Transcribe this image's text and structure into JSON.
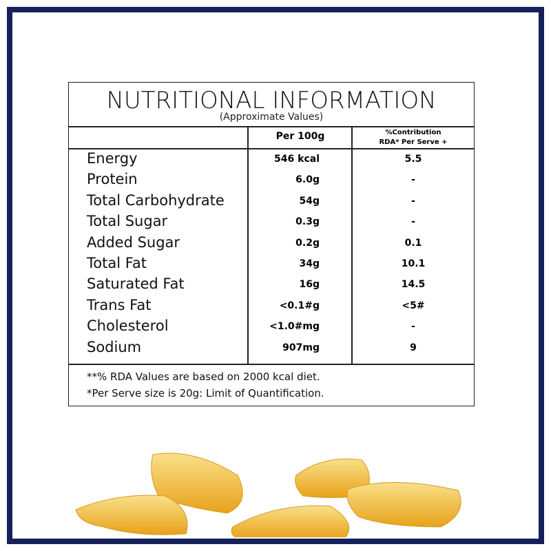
{
  "title": "NUTRITIONAL INFORMATION",
  "subtitle": "(Approximate Values)",
  "headers": {
    "per100": "Per 100g",
    "contrib_line1": "%Contribution",
    "contrib_line2": "RDA* Per Serve +"
  },
  "rows": [
    {
      "name": "Energy",
      "per100": "546 kcal",
      "rda": "5.5"
    },
    {
      "name": "Protein",
      "per100": "6.0g",
      "rda": "-"
    },
    {
      "name": "Total Carbohydrate",
      "per100": "54g",
      "rda": "-"
    },
    {
      "name": "Total Sugar",
      "per100": "0.3g",
      "rda": "-"
    },
    {
      "name": "Added Sugar",
      "per100": "0.2g",
      "rda": "0.1"
    },
    {
      "name": "Total Fat",
      "per100": "34g",
      "rda": "10.1"
    },
    {
      "name": "Saturated Fat",
      "per100": "16g",
      "rda": "14.5"
    },
    {
      "name": "Trans Fat",
      "per100": "<0.1#g",
      "rda": "<5#"
    },
    {
      "name": "Cholesterol",
      "per100": "<1.0#mg",
      "rda": "-"
    },
    {
      "name": "Sodium",
      "per100": "907mg",
      "rda": "9"
    }
  ],
  "footnotes": [
    "**% RDA Values are based on 2000 kcal diet.",
    "*Per Serve size is 20g: Limit of Quantification."
  ],
  "colors": {
    "frame": "#16205a",
    "chip": "#f2b731"
  }
}
